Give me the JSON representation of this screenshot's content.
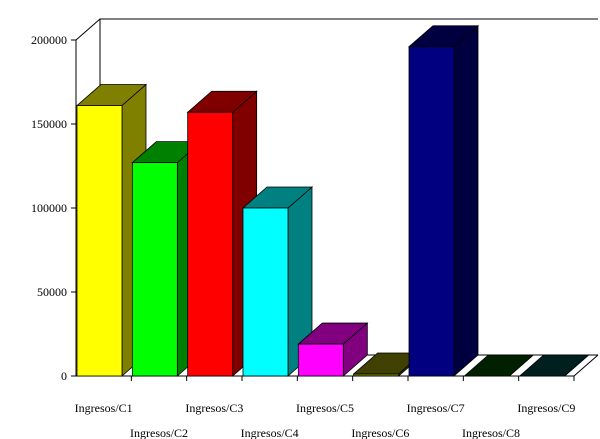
{
  "chart_data": {
    "type": "bar",
    "style": "3d-column",
    "categories": [
      "Ingresos/C1",
      "Ingresos/C2",
      "Ingresos/C3",
      "Ingresos/C4",
      "Ingresos/C5",
      "Ingresos/C6",
      "Ingresos/C7",
      "Ingresos/C8",
      "Ingresos/C9"
    ],
    "values": [
      161000,
      127000,
      157000,
      100000,
      19000,
      1200,
      196000,
      0,
      0
    ],
    "colors": [
      "#ffff00",
      "#00ff00",
      "#ff0000",
      "#00ffff",
      "#ff00ff",
      "#808000",
      "#000080",
      "#004000",
      "#004040"
    ],
    "yticks": [
      0,
      50000,
      100000,
      150000,
      200000
    ],
    "ytick_labels": [
      "0",
      "50000",
      "100000",
      "150000",
      "200000"
    ],
    "ylim": [
      0,
      200000
    ],
    "grid": false,
    "legend": "none"
  }
}
